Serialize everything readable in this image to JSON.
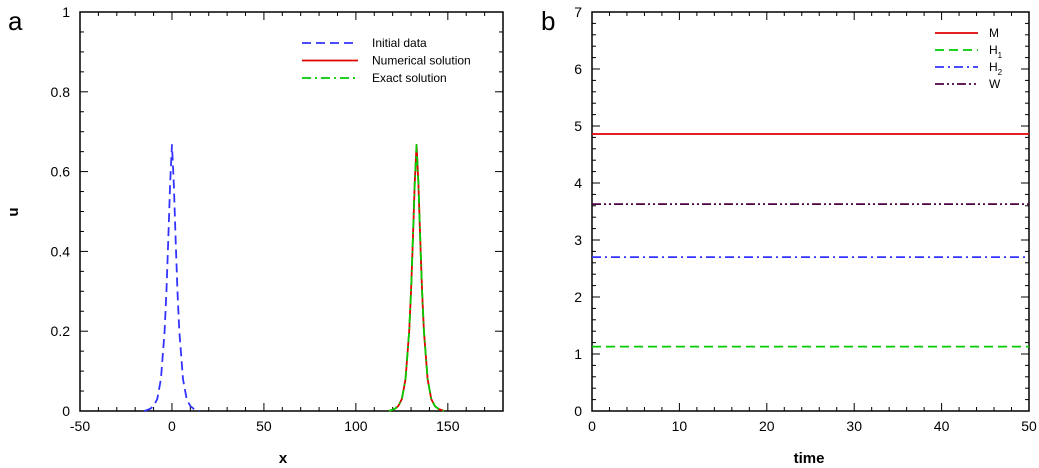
{
  "chart_data": [
    {
      "panel_label": "a",
      "type": "line",
      "xlabel": "x",
      "ylabel": "u",
      "xlim": [
        -50,
        180
      ],
      "ylim": [
        0,
        1
      ],
      "x_ticks": [
        -50,
        0,
        50,
        100,
        150
      ],
      "y_ticks": [
        0,
        0.2,
        0.4,
        0.6,
        0.8,
        1
      ],
      "x_tick_labels": [
        "-50",
        "0",
        "50",
        "100",
        "150"
      ],
      "y_tick_labels": [
        "0",
        "0.2",
        "0.4",
        "0.6",
        "0.8",
        "1"
      ],
      "legend_position": "top-right",
      "series": [
        {
          "name": "Initial data",
          "color": "#3333ff",
          "dash": "dashed",
          "x": [
            -15,
            -12,
            -10,
            -8,
            -6,
            -4,
            -3,
            -2,
            -1,
            0,
            1,
            2,
            3,
            4,
            6,
            8,
            10,
            12,
            15
          ],
          "y": [
            0.0,
            0.005,
            0.012,
            0.03,
            0.08,
            0.2,
            0.3,
            0.43,
            0.57,
            0.667,
            0.57,
            0.43,
            0.3,
            0.2,
            0.08,
            0.03,
            0.012,
            0.005,
            0.0
          ]
        },
        {
          "name": "Numerical solution",
          "color": "#e00000",
          "dash": "solid",
          "x": [
            118,
            121,
            123,
            125,
            127,
            129,
            130,
            131,
            132,
            133,
            134,
            135,
            136,
            137,
            139,
            141,
            143,
            145,
            148
          ],
          "y": [
            0.0,
            0.005,
            0.012,
            0.03,
            0.08,
            0.2,
            0.3,
            0.43,
            0.57,
            0.667,
            0.57,
            0.43,
            0.3,
            0.2,
            0.08,
            0.03,
            0.012,
            0.005,
            0.0
          ]
        },
        {
          "name": "Exact solution",
          "color": "#00cc00",
          "dash": "dashdot",
          "x": [
            118,
            121,
            123,
            125,
            127,
            129,
            130,
            131,
            132,
            133,
            134,
            135,
            136,
            137,
            139,
            141,
            143,
            145,
            148
          ],
          "y": [
            0.0,
            0.005,
            0.012,
            0.03,
            0.08,
            0.2,
            0.3,
            0.43,
            0.57,
            0.667,
            0.57,
            0.43,
            0.3,
            0.2,
            0.08,
            0.03,
            0.012,
            0.005,
            0.0
          ]
        }
      ]
    },
    {
      "panel_label": "b",
      "type": "line",
      "xlabel": "time",
      "ylabel": "",
      "xlim": [
        0,
        50
      ],
      "ylim": [
        0,
        7
      ],
      "x_ticks": [
        0,
        10,
        20,
        30,
        40,
        50
      ],
      "y_ticks": [
        0,
        1,
        2,
        3,
        4,
        5,
        6,
        7
      ],
      "x_tick_labels": [
        "0",
        "10",
        "20",
        "30",
        "40",
        "50"
      ],
      "y_tick_labels": [
        "0",
        "1",
        "2",
        "3",
        "4",
        "5",
        "6",
        "7"
      ],
      "legend_position": "top-right",
      "series": [
        {
          "name": "M",
          "name_sub": "",
          "color": "#e00000",
          "dash": "solid",
          "x": [
            0,
            50
          ],
          "y": [
            4.86,
            4.86
          ]
        },
        {
          "name": "H",
          "name_sub": "1",
          "color": "#00cc00",
          "dash": "dashed",
          "x": [
            0,
            50
          ],
          "y": [
            1.13,
            1.13
          ]
        },
        {
          "name": "H",
          "name_sub": "2",
          "color": "#3333ff",
          "dash": "dashdot",
          "x": [
            0,
            50
          ],
          "y": [
            2.7,
            2.7
          ]
        },
        {
          "name": "W",
          "name_sub": "",
          "color": "#4b0040",
          "dash": "dashdotdot",
          "x": [
            0,
            50
          ],
          "y": [
            3.63,
            3.63
          ]
        }
      ]
    }
  ]
}
